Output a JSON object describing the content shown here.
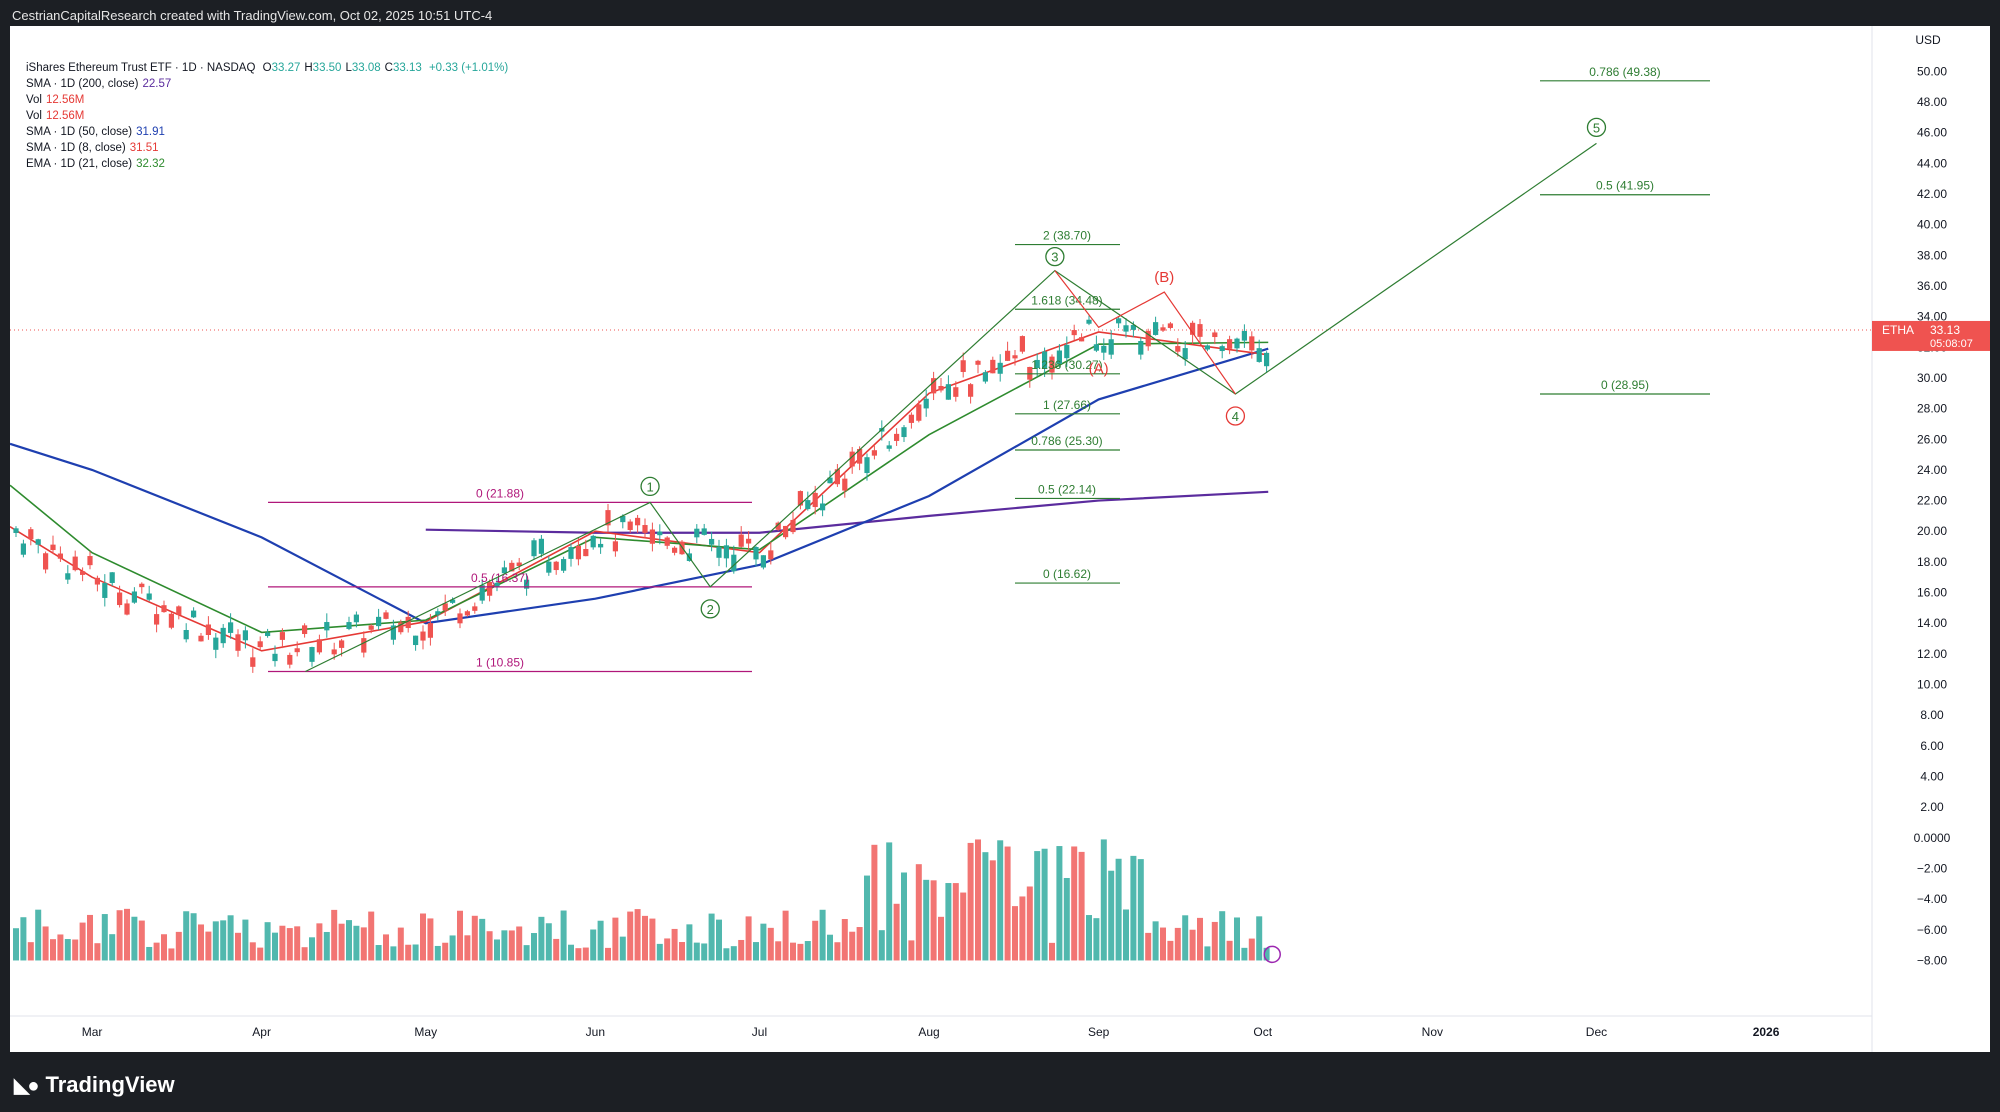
{
  "header": "CestrianCapitalResearch created with TradingView.com, Oct 02, 2025 10:51 UTC-4",
  "footer_brand": "TradingView",
  "legend": {
    "title": "iShares Ethereum Trust ETF · 1D · NASDAQ",
    "ohlc": [
      {
        "k": "O",
        "v": "33.27"
      },
      {
        "k": "H",
        "v": "33.50"
      },
      {
        "k": "L",
        "v": "33.08"
      },
      {
        "k": "C",
        "v": "33.13"
      }
    ],
    "change": "+0.33 (+1.01%)",
    "indicators": [
      {
        "label": "SMA · 1D (200, close)",
        "value": "22.57",
        "color": "#5b2c9e"
      },
      {
        "label": "Vol",
        "value": "12.56M",
        "color": "#e53935"
      },
      {
        "label": "Vol",
        "value": "12.56M",
        "color": "#e53935"
      },
      {
        "label": "SMA · 1D (50, close)",
        "value": "31.91",
        "color": "#1e3fb0"
      },
      {
        "label": "SMA · 1D (8, close)",
        "value": "31.51",
        "color": "#e53935"
      },
      {
        "label": "EMA · 1D (21, close)",
        "value": "32.32",
        "color": "#2e8b2e"
      }
    ]
  },
  "axis": {
    "currency": "USD",
    "price_ticks": [
      "50.00",
      "48.00",
      "46.00",
      "44.00",
      "42.00",
      "40.00",
      "38.00",
      "36.00",
      "34.00",
      "32.00",
      "30.00",
      "28.00",
      "26.00",
      "24.00",
      "22.00",
      "20.00",
      "18.00",
      "16.00",
      "14.00",
      "12.00",
      "10.00",
      "8.00",
      "6.00",
      "4.00",
      "2.00",
      "0.0000",
      "−2.00",
      "−4.00",
      "−6.00",
      "−8.00"
    ],
    "time_ticks": [
      "Mar",
      "Apr",
      "May",
      "Jun",
      "Jul",
      "Aug",
      "Sep",
      "Oct",
      "Nov",
      "Dec",
      "2026"
    ],
    "price_label": {
      "ticker": "ETHA",
      "price": "33.13",
      "countdown": "05:08:07"
    }
  },
  "annotations": {
    "fib_left": [
      "0 (21.88)",
      "0.5 (16.37)",
      "1 (10.85)"
    ],
    "fib_mid": [
      "2 (38.70)",
      "1.618 (34.48)",
      "1.236 (30.27)",
      "1 (27.66)",
      "0.786 (25.30)",
      "0.5 (22.14)",
      "0 (16.62)"
    ],
    "fib_right": [
      "0.786 (49.38)",
      "0.5 (41.95)",
      "0 (28.95)"
    ],
    "waves": [
      "1",
      "2",
      "3",
      "4",
      "5"
    ],
    "corrections": [
      "(A)",
      "(B)"
    ]
  },
  "colors": {
    "up": "#26a69a",
    "down": "#ef5350",
    "fib_left": "#b0177a",
    "fib_green": "#2e7d32",
    "sma200": "#5b2c9e",
    "sma50": "#1e3fb0",
    "sma8": "#e53935",
    "ema21": "#2e8b2e",
    "wave": "#2e7d32",
    "corr": "#e53935"
  },
  "chart_data": {
    "type": "candlestick",
    "title": "iShares Ethereum Trust ETF · 1D · NASDAQ",
    "ylabel": "USD",
    "ylim": [
      -8,
      51
    ],
    "x_range": [
      "2025-02-14",
      "2026-01-20"
    ],
    "series": [
      {
        "name": "SMA · 1D (200, close)",
        "points": [
          [
            "2025-05-01",
            20.1
          ],
          [
            "2025-06-01",
            19.9
          ],
          [
            "2025-07-01",
            19.9
          ],
          [
            "2025-08-01",
            21.0
          ],
          [
            "2025-09-01",
            22.0
          ],
          [
            "2025-10-02",
            22.57
          ]
        ]
      },
      {
        "name": "SMA · 1D (50, close)",
        "points": [
          [
            "2025-02-14",
            25.7
          ],
          [
            "2025-03-01",
            24.0
          ],
          [
            "2025-04-01",
            19.6
          ],
          [
            "2025-05-01",
            14.0
          ],
          [
            "2025-06-01",
            15.6
          ],
          [
            "2025-07-01",
            17.8
          ],
          [
            "2025-08-01",
            22.3
          ],
          [
            "2025-09-01",
            28.6
          ],
          [
            "2025-10-02",
            31.91
          ]
        ]
      },
      {
        "name": "SMA · 1D (8, close)",
        "points": [
          [
            "2025-02-14",
            20.3
          ],
          [
            "2025-03-01",
            17.0
          ],
          [
            "2025-04-01",
            12.2
          ],
          [
            "2025-05-01",
            14.1
          ],
          [
            "2025-06-01",
            20.0
          ],
          [
            "2025-07-01",
            18.6
          ],
          [
            "2025-08-01",
            29.0
          ],
          [
            "2025-09-01",
            33.0
          ],
          [
            "2025-10-02",
            31.51
          ]
        ]
      },
      {
        "name": "EMA · 1D (21, close)",
        "points": [
          [
            "2025-02-14",
            23.0
          ],
          [
            "2025-03-01",
            18.6
          ],
          [
            "2025-04-01",
            13.4
          ],
          [
            "2025-05-01",
            14.2
          ],
          [
            "2025-06-01",
            19.6
          ],
          [
            "2025-07-01",
            18.8
          ],
          [
            "2025-08-01",
            26.3
          ],
          [
            "2025-09-01",
            32.2
          ],
          [
            "2025-10-02",
            32.32
          ]
        ]
      }
    ],
    "last": {
      "open": 33.27,
      "high": 33.5,
      "low": 33.08,
      "close": 33.13,
      "change": 0.33,
      "change_pct": 1.01,
      "volume": "12.56M"
    },
    "fib_levels": [
      {
        "ratio": 0,
        "price": 21.88
      },
      {
        "ratio": 0.5,
        "price": 16.37
      },
      {
        "ratio": 1,
        "price": 10.85
      },
      {
        "ratio": 2,
        "price": 38.7
      },
      {
        "ratio": 1.618,
        "price": 34.48
      },
      {
        "ratio": 1.236,
        "price": 30.27
      },
      {
        "ratio": 1,
        "price": 27.66
      },
      {
        "ratio": 0.786,
        "price": 25.3
      },
      {
        "ratio": 0.5,
        "price": 22.14
      },
      {
        "ratio": 0,
        "price": 16.62
      },
      {
        "ratio": 0.786,
        "price": 49.38
      },
      {
        "ratio": 0.5,
        "price": 41.95
      },
      {
        "ratio": 0,
        "price": 28.95
      }
    ],
    "wave_points": [
      [
        "2025-04-09",
        10.85
      ],
      [
        "2025-06-11",
        21.88
      ],
      [
        "2025-06-22",
        16.37
      ],
      [
        "2025-08-24",
        37.0
      ],
      [
        "2025-09-26",
        28.95
      ],
      [
        "2025-12-01",
        45.3
      ]
    ],
    "correction_points": [
      [
        "2025-09-01",
        31.2
      ],
      [
        "2025-09-13",
        35.6
      ]
    ]
  }
}
